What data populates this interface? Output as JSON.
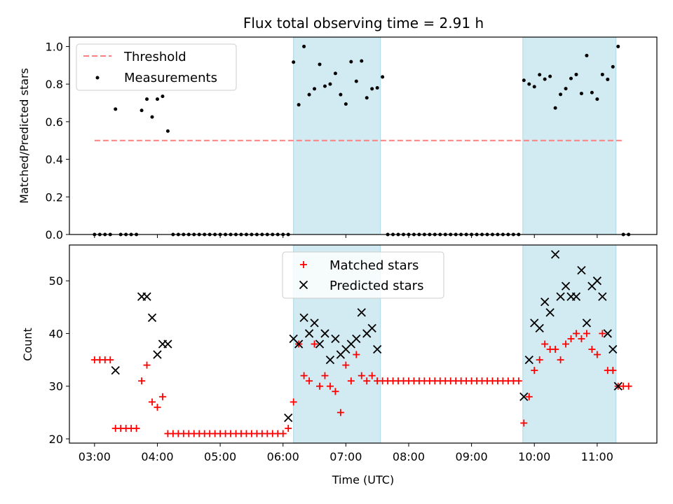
{
  "title": "Flux total observing time = 2.91 h",
  "chart_data": [
    {
      "type": "scatter",
      "panel": "top",
      "ylabel": "Matched/Predicted stars",
      "xlabel": "",
      "ylim": [
        0,
        1.05
      ],
      "yticks": [
        0.0,
        0.2,
        0.4,
        0.6,
        0.8,
        1.0
      ],
      "ytick_labels": [
        "0.0",
        "0.2",
        "0.4",
        "0.6",
        "0.8",
        "1.0"
      ],
      "legend": {
        "placement": "upper-left",
        "entries": [
          "Threshold",
          "Measurements"
        ]
      },
      "threshold": {
        "name": "Threshold",
        "value": 0.5,
        "x_range": [
          "03:00",
          "11:25"
        ],
        "color": "#ff7f7f"
      },
      "shaded_regions": [
        [
          "06:10",
          "07:33"
        ],
        [
          "09:49",
          "11:18"
        ]
      ],
      "shade_color": "#add8e6",
      "series": [
        {
          "name": "Measurements",
          "color": "#000000",
          "points": [
            [
              "03:00",
              0.0
            ],
            [
              "03:05",
              0.0
            ],
            [
              "03:10",
              0.0
            ],
            [
              "03:15",
              0.0
            ],
            [
              "03:20",
              0.667
            ],
            [
              "03:25",
              0.0
            ],
            [
              "03:30",
              0.0
            ],
            [
              "03:35",
              0.0
            ],
            [
              "03:40",
              0.0
            ],
            [
              "03:45",
              0.66
            ],
            [
              "03:50",
              0.72
            ],
            [
              "03:55",
              0.625
            ],
            [
              "04:00",
              0.72
            ],
            [
              "04:05",
              0.735
            ],
            [
              "04:10",
              0.55
            ],
            [
              "04:15",
              0.0
            ],
            [
              "04:20",
              0.0
            ],
            [
              "04:25",
              0.0
            ],
            [
              "04:30",
              0.0
            ],
            [
              "04:35",
              0.0
            ],
            [
              "04:40",
              0.0
            ],
            [
              "04:45",
              0.0
            ],
            [
              "04:50",
              0.0
            ],
            [
              "04:55",
              0.0
            ],
            [
              "05:00",
              0.0
            ],
            [
              "05:05",
              0.0
            ],
            [
              "05:10",
              0.0
            ],
            [
              "05:15",
              0.0
            ],
            [
              "05:20",
              0.0
            ],
            [
              "05:25",
              0.0
            ],
            [
              "05:30",
              0.0
            ],
            [
              "05:35",
              0.0
            ],
            [
              "05:40",
              0.0
            ],
            [
              "05:45",
              0.0
            ],
            [
              "05:50",
              0.0
            ],
            [
              "05:55",
              0.0
            ],
            [
              "06:00",
              0.0
            ],
            [
              "06:05",
              0.0
            ],
            [
              "06:10",
              0.917
            ],
            [
              "06:15",
              0.69
            ],
            [
              "06:20",
              1.0
            ],
            [
              "06:25",
              0.744
            ],
            [
              "06:30",
              0.775
            ],
            [
              "06:35",
              0.905
            ],
            [
              "06:40",
              0.789
            ],
            [
              "06:45",
              0.8
            ],
            [
              "06:50",
              0.857
            ],
            [
              "06:55",
              0.744
            ],
            [
              "07:00",
              0.694
            ],
            [
              "07:05",
              0.919
            ],
            [
              "07:10",
              0.815
            ],
            [
              "07:15",
              0.923
            ],
            [
              "07:20",
              0.727
            ],
            [
              "07:25",
              0.775
            ],
            [
              "07:30",
              0.78
            ],
            [
              "07:35",
              0.838
            ],
            [
              "07:40",
              0.0
            ],
            [
              "07:45",
              0.0
            ],
            [
              "07:50",
              0.0
            ],
            [
              "07:55",
              0.0
            ],
            [
              "08:00",
              0.0
            ],
            [
              "08:05",
              0.0
            ],
            [
              "08:10",
              0.0
            ],
            [
              "08:15",
              0.0
            ],
            [
              "08:20",
              0.0
            ],
            [
              "08:25",
              0.0
            ],
            [
              "08:30",
              0.0
            ],
            [
              "08:35",
              0.0
            ],
            [
              "08:40",
              0.0
            ],
            [
              "08:45",
              0.0
            ],
            [
              "08:50",
              0.0
            ],
            [
              "08:55",
              0.0
            ],
            [
              "09:00",
              0.0
            ],
            [
              "09:05",
              0.0
            ],
            [
              "09:10",
              0.0
            ],
            [
              "09:15",
              0.0
            ],
            [
              "09:20",
              0.0
            ],
            [
              "09:25",
              0.0
            ],
            [
              "09:30",
              0.0
            ],
            [
              "09:35",
              0.0
            ],
            [
              "09:40",
              0.0
            ],
            [
              "09:45",
              0.0
            ],
            [
              "09:50",
              0.82
            ],
            [
              "09:55",
              0.8
            ],
            [
              "10:00",
              0.786
            ],
            [
              "10:05",
              0.85
            ],
            [
              "10:10",
              0.826
            ],
            [
              "10:15",
              0.841
            ],
            [
              "10:20",
              0.673
            ],
            [
              "10:25",
              0.745
            ],
            [
              "10:30",
              0.776
            ],
            [
              "10:35",
              0.83
            ],
            [
              "10:40",
              0.851
            ],
            [
              "10:45",
              0.75
            ],
            [
              "10:50",
              0.952
            ],
            [
              "10:55",
              0.755
            ],
            [
              "11:00",
              0.72
            ],
            [
              "11:05",
              0.851
            ],
            [
              "11:10",
              0.825
            ],
            [
              "11:15",
              0.892
            ],
            [
              "11:20",
              1.0
            ],
            [
              "11:25",
              0.0
            ],
            [
              "11:30",
              0.0
            ]
          ]
        }
      ]
    },
    {
      "type": "scatter",
      "panel": "bottom",
      "xlabel": "Time (UTC)",
      "ylabel": "Count",
      "xlim": [
        "02:36",
        "11:57"
      ],
      "xticks": [
        "03:00",
        "04:00",
        "05:00",
        "06:00",
        "07:00",
        "08:00",
        "09:00",
        "10:00",
        "11:00"
      ],
      "ylim": [
        19.2,
        56.8
      ],
      "yticks": [
        20,
        30,
        40,
        50
      ],
      "ytick_labels": [
        "20",
        "30",
        "40",
        "50"
      ],
      "legend": {
        "placement": "upper-center",
        "entries": [
          "Matched stars",
          "Predicted stars"
        ]
      },
      "shaded_regions": [
        [
          "06:10",
          "07:33"
        ],
        [
          "09:49",
          "11:18"
        ]
      ],
      "shade_color": "#add8e6",
      "series": [
        {
          "name": "Matched stars",
          "marker": "plus",
          "color": "#ff0000",
          "points": [
            [
              "03:00",
              35
            ],
            [
              "03:05",
              35
            ],
            [
              "03:10",
              35
            ],
            [
              "03:15",
              35
            ],
            [
              "03:20",
              22
            ],
            [
              "03:25",
              22
            ],
            [
              "03:30",
              22
            ],
            [
              "03:35",
              22
            ],
            [
              "03:40",
              22
            ],
            [
              "03:45",
              31
            ],
            [
              "03:50",
              34
            ],
            [
              "03:55",
              27
            ],
            [
              "04:00",
              26
            ],
            [
              "04:05",
              28
            ],
            [
              "04:10",
              21
            ],
            [
              "04:15",
              21
            ],
            [
              "04:20",
              21
            ],
            [
              "04:25",
              21
            ],
            [
              "04:30",
              21
            ],
            [
              "04:35",
              21
            ],
            [
              "04:40",
              21
            ],
            [
              "04:45",
              21
            ],
            [
              "04:50",
              21
            ],
            [
              "04:55",
              21
            ],
            [
              "05:00",
              21
            ],
            [
              "05:05",
              21
            ],
            [
              "05:10",
              21
            ],
            [
              "05:15",
              21
            ],
            [
              "05:20",
              21
            ],
            [
              "05:25",
              21
            ],
            [
              "05:30",
              21
            ],
            [
              "05:35",
              21
            ],
            [
              "05:40",
              21
            ],
            [
              "05:45",
              21
            ],
            [
              "05:50",
              21
            ],
            [
              "05:55",
              21
            ],
            [
              "06:00",
              21
            ],
            [
              "06:05",
              22
            ],
            [
              "06:10",
              27
            ],
            [
              "06:15",
              38
            ],
            [
              "06:20",
              32
            ],
            [
              "06:25",
              31
            ],
            [
              "06:30",
              38
            ],
            [
              "06:35",
              30
            ],
            [
              "06:40",
              32
            ],
            [
              "06:45",
              30
            ],
            [
              "06:50",
              29
            ],
            [
              "06:55",
              25
            ],
            [
              "07:00",
              34
            ],
            [
              "07:05",
              31
            ],
            [
              "07:10",
              36
            ],
            [
              "07:15",
              32
            ],
            [
              "07:20",
              31
            ],
            [
              "07:25",
              32
            ],
            [
              "07:30",
              31
            ],
            [
              "07:35",
              31
            ],
            [
              "07:40",
              31
            ],
            [
              "07:45",
              31
            ],
            [
              "07:50",
              31
            ],
            [
              "07:55",
              31
            ],
            [
              "08:00",
              31
            ],
            [
              "08:05",
              31
            ],
            [
              "08:10",
              31
            ],
            [
              "08:15",
              31
            ],
            [
              "08:20",
              31
            ],
            [
              "08:25",
              31
            ],
            [
              "08:30",
              31
            ],
            [
              "08:35",
              31
            ],
            [
              "08:40",
              31
            ],
            [
              "08:45",
              31
            ],
            [
              "08:50",
              31
            ],
            [
              "08:55",
              31
            ],
            [
              "09:00",
              31
            ],
            [
              "09:05",
              31
            ],
            [
              "09:10",
              31
            ],
            [
              "09:15",
              31
            ],
            [
              "09:20",
              31
            ],
            [
              "09:25",
              31
            ],
            [
              "09:30",
              31
            ],
            [
              "09:35",
              31
            ],
            [
              "09:40",
              31
            ],
            [
              "09:45",
              31
            ],
            [
              "09:50",
              23
            ],
            [
              "09:55",
              28
            ],
            [
              "10:00",
              33
            ],
            [
              "10:05",
              35
            ],
            [
              "10:10",
              38
            ],
            [
              "10:15",
              37
            ],
            [
              "10:20",
              37
            ],
            [
              "10:25",
              35
            ],
            [
              "10:30",
              38
            ],
            [
              "10:35",
              39
            ],
            [
              "10:40",
              40
            ],
            [
              "10:45",
              39
            ],
            [
              "10:50",
              40
            ],
            [
              "10:55",
              37
            ],
            [
              "11:00",
              36
            ],
            [
              "11:05",
              40
            ],
            [
              "11:10",
              33
            ],
            [
              "11:15",
              33
            ],
            [
              "11:20",
              30
            ],
            [
              "11:25",
              30
            ],
            [
              "11:30",
              30
            ]
          ]
        },
        {
          "name": "Predicted stars",
          "marker": "x",
          "color": "#000000",
          "points": [
            [
              "03:20",
              33
            ],
            [
              "03:45",
              47
            ],
            [
              "03:50",
              47
            ],
            [
              "03:55",
              43
            ],
            [
              "04:00",
              36
            ],
            [
              "04:05",
              38
            ],
            [
              "04:10",
              38
            ],
            [
              "06:05",
              24
            ],
            [
              "06:10",
              39
            ],
            [
              "06:15",
              38
            ],
            [
              "06:20",
              43
            ],
            [
              "06:25",
              40
            ],
            [
              "06:30",
              42
            ],
            [
              "06:35",
              38
            ],
            [
              "06:40",
              40
            ],
            [
              "06:45",
              35
            ],
            [
              "06:50",
              39
            ],
            [
              "06:55",
              36
            ],
            [
              "07:00",
              37
            ],
            [
              "07:05",
              38
            ],
            [
              "07:10",
              39
            ],
            [
              "07:15",
              44
            ],
            [
              "07:20",
              40
            ],
            [
              "07:25",
              41
            ],
            [
              "07:30",
              37
            ],
            [
              "09:50",
              28
            ],
            [
              "09:55",
              35
            ],
            [
              "10:00",
              42
            ],
            [
              "10:05",
              41
            ],
            [
              "10:10",
              46
            ],
            [
              "10:15",
              44
            ],
            [
              "10:20",
              55
            ],
            [
              "10:25",
              47
            ],
            [
              "10:30",
              49
            ],
            [
              "10:35",
              47
            ],
            [
              "10:40",
              47
            ],
            [
              "10:45",
              52
            ],
            [
              "10:50",
              42
            ],
            [
              "10:55",
              49
            ],
            [
              "11:00",
              50
            ],
            [
              "11:05",
              47
            ],
            [
              "11:10",
              40
            ],
            [
              "11:15",
              37
            ],
            [
              "11:20",
              30
            ]
          ]
        }
      ]
    }
  ]
}
